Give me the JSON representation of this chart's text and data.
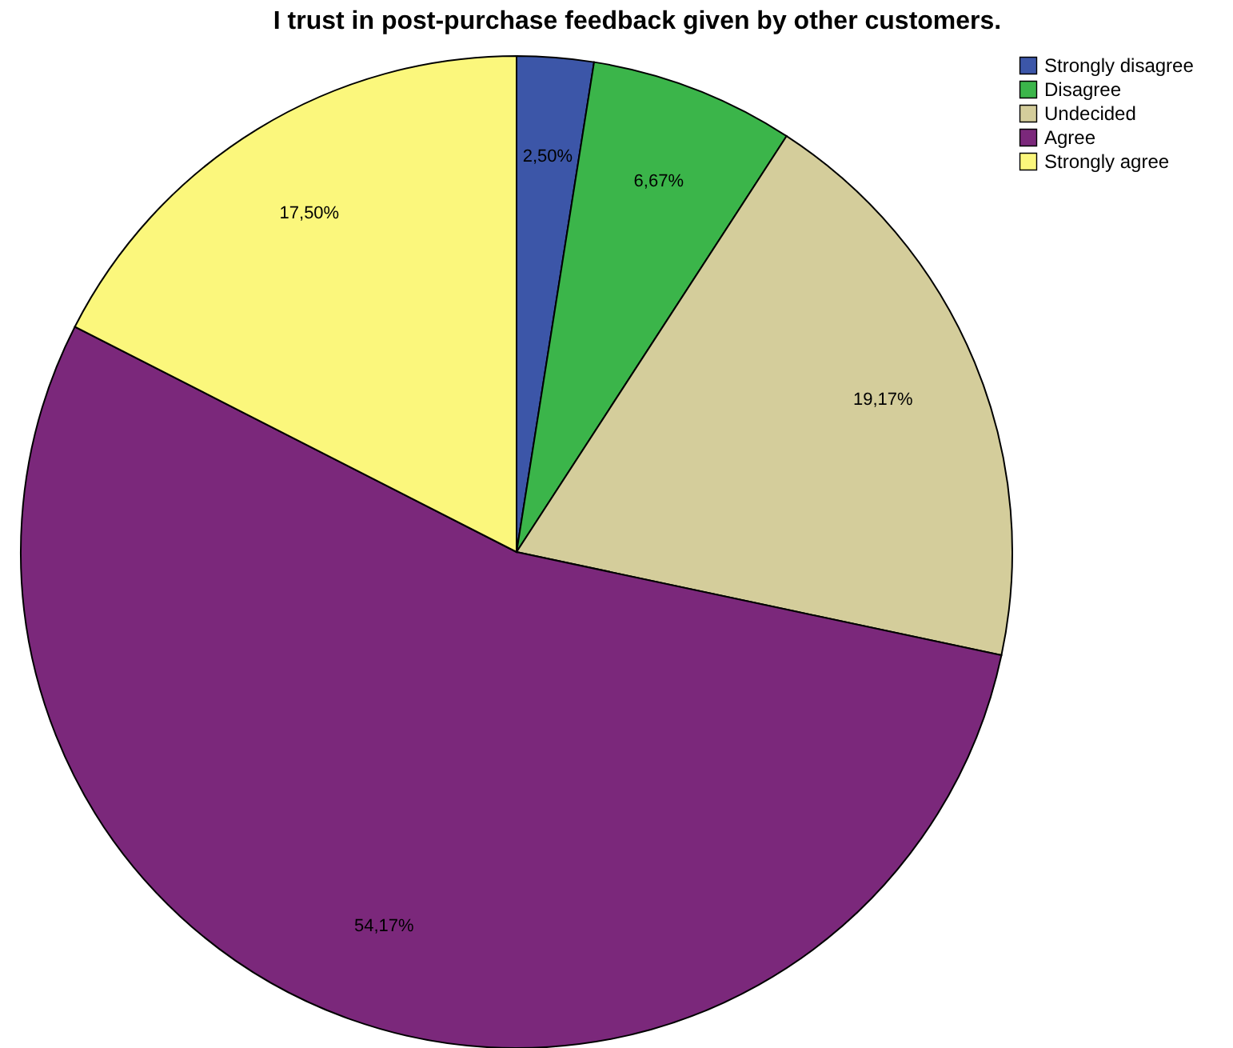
{
  "chart_data": {
    "type": "pie",
    "title": "I trust in post-purchase feedback given by other customers.",
    "categories": [
      "Strongly disagree",
      "Disagree",
      "Undecided",
      "Agree",
      "Strongly agree"
    ],
    "values": [
      2.5,
      6.67,
      19.17,
      54.17,
      17.5
    ],
    "colors": [
      "#3c56a8",
      "#3bb54a",
      "#d4cd9b",
      "#7b287b",
      "#fbf77c"
    ],
    "value_labels": [
      "2,50%",
      "6,67%",
      "19,17%",
      "54,17%",
      "17,50%"
    ],
    "legend": "top right"
  }
}
